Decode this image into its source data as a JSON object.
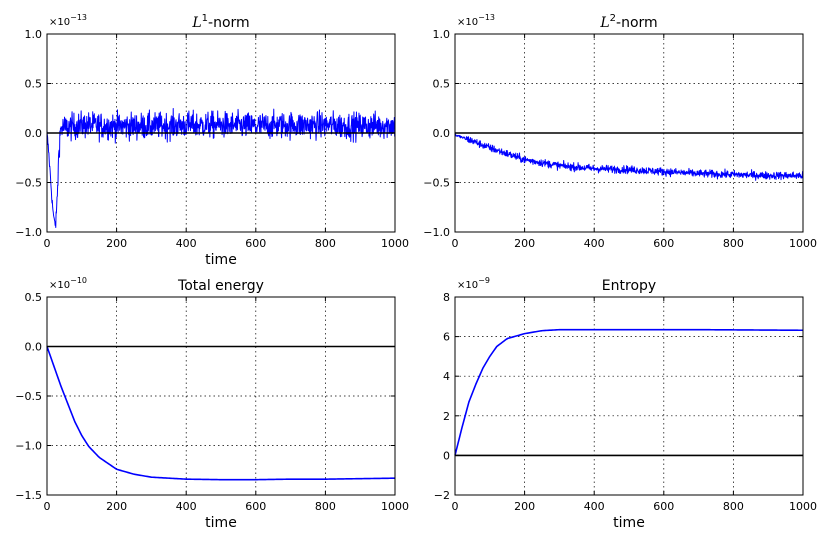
{
  "colors": {
    "series": "#0000ff",
    "zero_line": "#000000",
    "grid": "#000000"
  },
  "chart_data": [
    {
      "type": "line",
      "title_symbol": "L",
      "title_sup": "1",
      "title_rest": "-norm",
      "xlabel": "time",
      "ylabel": "",
      "multiplier_base": "×10",
      "multiplier_exp": "−13",
      "xlim": [
        0,
        1000
      ],
      "ylim": [
        -1.0,
        1.0
      ],
      "xticks": [
        0,
        200,
        400,
        600,
        800,
        1000
      ],
      "xtick_labels": [
        "0",
        "200",
        "400",
        "600",
        "800",
        "1000"
      ],
      "yticks": [
        -1.0,
        -0.5,
        0.0,
        0.5,
        1.0
      ],
      "ytick_labels": [
        "−1.0",
        "−0.5",
        "0.0",
        "0.5",
        "1.0"
      ],
      "grid": true,
      "reference_line_y": 0,
      "series": [
        {
          "x": [
            0,
            5,
            10,
            15,
            20,
            25,
            30,
            35,
            40,
            50,
            100,
            200,
            300,
            400,
            500,
            600,
            700,
            800,
            900,
            1000
          ],
          "y": [
            0.0,
            -0.2,
            -0.45,
            -0.7,
            -0.88,
            -0.93,
            -0.6,
            -0.1,
            0.05,
            0.05,
            0.08,
            0.07,
            0.07,
            0.08,
            0.08,
            0.07,
            0.08,
            0.08,
            0.07,
            0.08
          ],
          "noise_amplitude": 0.12
        }
      ]
    },
    {
      "type": "line",
      "title_symbol": "L",
      "title_sup": "2",
      "title_rest": "-norm",
      "xlabel": "",
      "ylabel": "",
      "multiplier_base": "×10",
      "multiplier_exp": "−13",
      "xlim": [
        0,
        1000
      ],
      "ylim": [
        -1.0,
        1.0
      ],
      "xticks": [
        0,
        200,
        400,
        600,
        800,
        1000
      ],
      "xtick_labels": [
        "0",
        "200",
        "400",
        "600",
        "800",
        "1000"
      ],
      "yticks": [
        -1.0,
        -0.5,
        0.0,
        0.5,
        1.0
      ],
      "ytick_labels": [
        "−1.0",
        "−0.5",
        "0.0",
        "0.5",
        "1.0"
      ],
      "grid": true,
      "reference_line_y": 0,
      "series": [
        {
          "x": [
            0,
            50,
            100,
            150,
            200,
            300,
            400,
            500,
            600,
            700,
            800,
            900,
            1000
          ],
          "y": [
            -0.02,
            -0.08,
            -0.15,
            -0.21,
            -0.27,
            -0.33,
            -0.36,
            -0.37,
            -0.39,
            -0.41,
            -0.42,
            -0.43,
            -0.43
          ],
          "noise_amplitude": 0.035
        }
      ]
    },
    {
      "type": "line",
      "title": "Total energy",
      "xlabel": "time",
      "ylabel": "",
      "multiplier_base": "×10",
      "multiplier_exp": "−10",
      "xlim": [
        0,
        1000
      ],
      "ylim": [
        -1.5,
        0.5
      ],
      "xticks": [
        0,
        200,
        400,
        600,
        800,
        1000
      ],
      "xtick_labels": [
        "0",
        "200",
        "400",
        "600",
        "800",
        "1000"
      ],
      "yticks": [
        -1.5,
        -1.0,
        -0.5,
        0.0,
        0.5
      ],
      "ytick_labels": [
        "−1.5",
        "−1.0",
        "−0.5",
        "0.0",
        "0.5"
      ],
      "grid": true,
      "reference_line_y": 0,
      "series": [
        {
          "x": [
            0,
            20,
            40,
            60,
            80,
            100,
            120,
            150,
            200,
            250,
            300,
            400,
            500,
            600,
            700,
            800,
            900,
            1000
          ],
          "y": [
            0.0,
            -0.2,
            -0.4,
            -0.58,
            -0.76,
            -0.9,
            -1.01,
            -1.12,
            -1.24,
            -1.29,
            -1.32,
            -1.34,
            -1.345,
            -1.345,
            -1.34,
            -1.34,
            -1.335,
            -1.33
          ],
          "noise_amplitude": 0
        }
      ]
    },
    {
      "type": "line",
      "title": "Entropy",
      "xlabel": "time",
      "ylabel": "",
      "multiplier_base": "×10",
      "multiplier_exp": "−9",
      "xlim": [
        0,
        1000
      ],
      "ylim": [
        -2,
        8
      ],
      "xticks": [
        0,
        200,
        400,
        600,
        800,
        1000
      ],
      "xtick_labels": [
        "0",
        "200",
        "400",
        "600",
        "800",
        "1000"
      ],
      "yticks": [
        -2,
        0,
        2,
        4,
        6,
        8
      ],
      "ytick_labels": [
        "−2",
        "0",
        "2",
        "4",
        "6",
        "8"
      ],
      "grid": true,
      "reference_line_y": 0,
      "series": [
        {
          "x": [
            0,
            20,
            40,
            60,
            80,
            100,
            120,
            150,
            200,
            250,
            300,
            400,
            500,
            600,
            700,
            800,
            900,
            1000
          ],
          "y": [
            0.0,
            1.4,
            2.7,
            3.6,
            4.4,
            5.0,
            5.5,
            5.9,
            6.15,
            6.3,
            6.35,
            6.35,
            6.35,
            6.35,
            6.35,
            6.34,
            6.33,
            6.32
          ],
          "noise_amplitude": 0
        }
      ]
    }
  ]
}
